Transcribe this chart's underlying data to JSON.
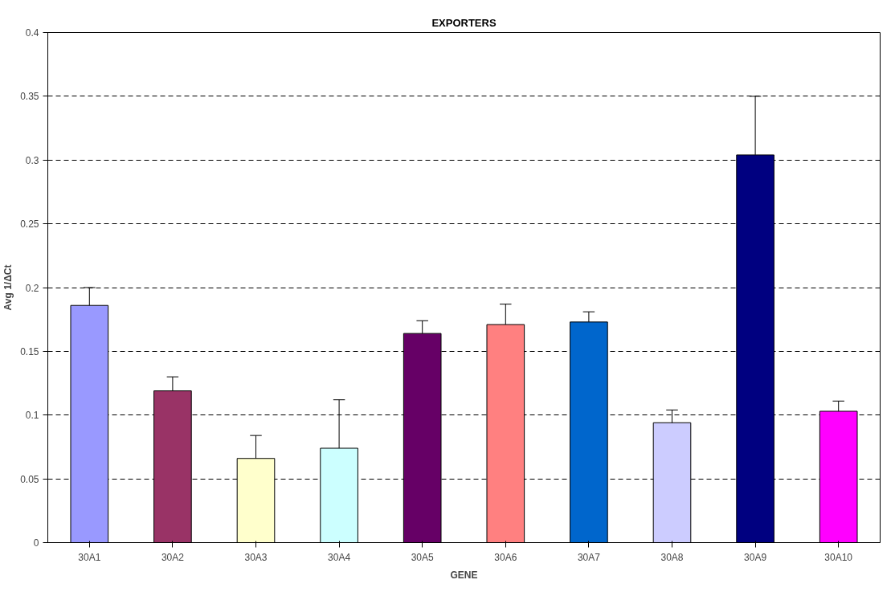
{
  "chart_data": {
    "type": "bar",
    "title": "EXPORTERS",
    "xlabel": "GENE",
    "ylabel": "Avg 1/ΔCt",
    "categories": [
      "30A1",
      "30A2",
      "30A3",
      "30A4",
      "30A5",
      "30A6",
      "30A7",
      "30A8",
      "30A9",
      "30A10"
    ],
    "values": [
      0.186,
      0.119,
      0.066,
      0.074,
      0.164,
      0.171,
      0.173,
      0.094,
      0.304,
      0.103
    ],
    "colors": [
      "#9999ff",
      "#993366",
      "#ffffcc",
      "#ccffff",
      "#660066",
      "#ff8080",
      "#0066cc",
      "#ccccff",
      "#000080",
      "#ff00ff"
    ],
    "errors": [
      [
        0.186,
        0.2
      ],
      [
        0.119,
        0.13
      ],
      [
        0.066,
        0.084
      ],
      [
        0.074,
        0.112
      ],
      [
        0.164,
        0.174
      ],
      [
        0.171,
        0.187
      ],
      [
        0.173,
        0.181
      ],
      [
        0.094,
        0.104
      ],
      [
        0.304,
        0.35
      ],
      [
        0.103,
        0.111
      ]
    ],
    "ylim": [
      0,
      0.4
    ],
    "yticks": [
      0,
      0.05,
      0.1,
      0.15,
      0.2,
      0.25,
      0.3,
      0.35,
      0.4
    ],
    "grid": "y"
  }
}
